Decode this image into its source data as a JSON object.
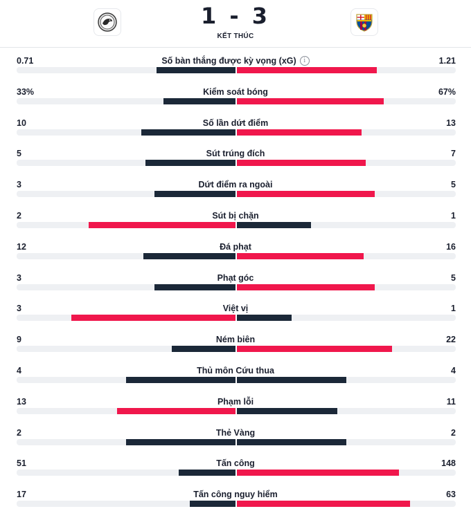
{
  "match": {
    "score": "1 - 3",
    "status": "KẾT THÚC",
    "home_logo": "club-crest-icon",
    "away_logo": "barcelona-crest-icon"
  },
  "colors": {
    "winner": "#f0174c",
    "other": "#1b2838",
    "track": "#eef0f3"
  },
  "stats": [
    {
      "label": "Số bàn thắng được kỳ vọng (xG)",
      "home": "0.71",
      "away": "1.21",
      "home_frac": 0.36,
      "away_frac": 0.64,
      "info": true
    },
    {
      "label": "Kiểm soát bóng",
      "home": "33%",
      "away": "67%",
      "home_frac": 0.33,
      "away_frac": 0.67
    },
    {
      "label": "Số lần dứt điểm",
      "home": "10",
      "away": "13",
      "home_frac": 0.43,
      "away_frac": 0.57
    },
    {
      "label": "Sút trúng đích",
      "home": "5",
      "away": "7",
      "home_frac": 0.41,
      "away_frac": 0.59
    },
    {
      "label": "Dứt điểm ra ngoài",
      "home": "3",
      "away": "5",
      "home_frac": 0.37,
      "away_frac": 0.63
    },
    {
      "label": "Sút bị chặn",
      "home": "2",
      "away": "1",
      "home_frac": 0.67,
      "away_frac": 0.34
    },
    {
      "label": "Đá phạt",
      "home": "12",
      "away": "16",
      "home_frac": 0.42,
      "away_frac": 0.58
    },
    {
      "label": "Phạt góc",
      "home": "3",
      "away": "5",
      "home_frac": 0.37,
      "away_frac": 0.63
    },
    {
      "label": "Việt vị",
      "home": "3",
      "away": "1",
      "home_frac": 0.75,
      "away_frac": 0.25
    },
    {
      "label": "Ném biên",
      "home": "9",
      "away": "22",
      "home_frac": 0.29,
      "away_frac": 0.71
    },
    {
      "label": "Thủ môn Cứu thua",
      "home": "4",
      "away": "4",
      "home_frac": 0.5,
      "away_frac": 0.5
    },
    {
      "label": "Phạm lỗi",
      "home": "13",
      "away": "11",
      "home_frac": 0.54,
      "away_frac": 0.46
    },
    {
      "label": "Thẻ Vàng",
      "home": "2",
      "away": "2",
      "home_frac": 0.5,
      "away_frac": 0.5
    },
    {
      "label": "Tấn công",
      "home": "51",
      "away": "148",
      "home_frac": 0.26,
      "away_frac": 0.74
    },
    {
      "label": "Tấn công nguy hiểm",
      "home": "17",
      "away": "63",
      "home_frac": 0.21,
      "away_frac": 0.79
    }
  ]
}
